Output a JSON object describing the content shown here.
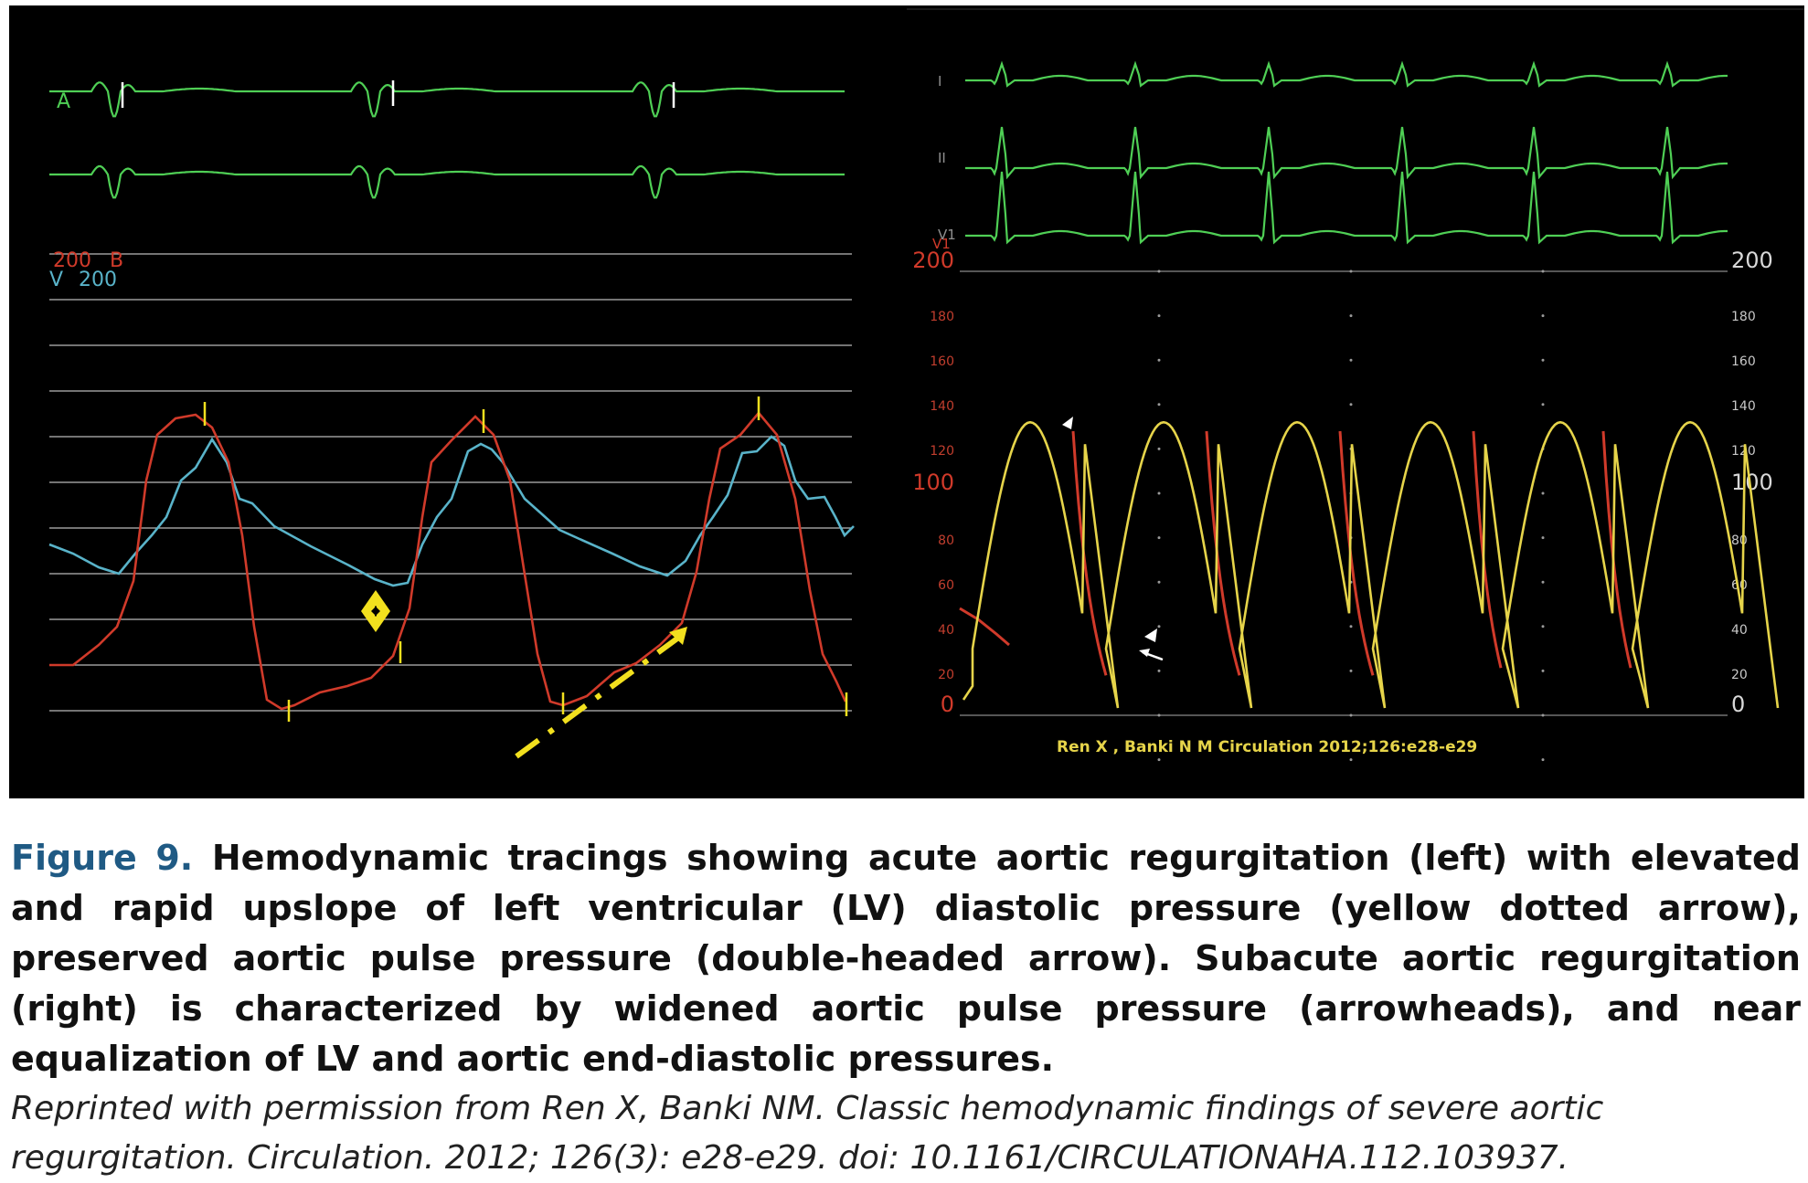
{
  "left_panel": {
    "lead_a_label": "A",
    "scale_red": "200",
    "scale_red_tag": "B",
    "scale_cyan_tag": "V",
    "scale_cyan": "200"
  },
  "right_panel": {
    "lead_labels": [
      "I",
      "II",
      "V1"
    ],
    "left_scale_major": [
      "200",
      "100",
      "0"
    ],
    "right_scale_major": [
      "200",
      "100",
      "0"
    ],
    "minor_ticks": [
      "180",
      "160",
      "140",
      "120",
      "80",
      "60",
      "40",
      "20"
    ],
    "citation": "Ren X , Banki N M Circulation 2012;126:e28-e29"
  },
  "colors": {
    "ecg": "#4fcf55",
    "lv_pressure": "#d03a2a",
    "aortic_pressure_left": "#59b3c9",
    "aortic_pressure_right": "#e6d44a",
    "annotation": "#f2e01e",
    "caption_label": "#1f5a84"
  },
  "caption": {
    "label": "Figure 9.",
    "text": "Hemodynamic tracings showing acute aortic regurgitation (left) with elevated and rapid upslope of left ventricular (LV) diastolic pressure (yellow dotted arrow), preserved aortic pulse pressure (double-headed arrow). Subacute aortic regurgitation (right) is characterized by widened aortic pulse pressure (arrowheads), and near equalization of LV and aortic end-diastolic pressures.",
    "credit": "Reprinted with permission from Ren X, Banki NM. Classic hemodynamic findings of severe aortic regurgitation. Circulation. 2012; 126(3): e28-e29. doi: 10.1161/CIRCULATIONAHA.112.103937."
  }
}
